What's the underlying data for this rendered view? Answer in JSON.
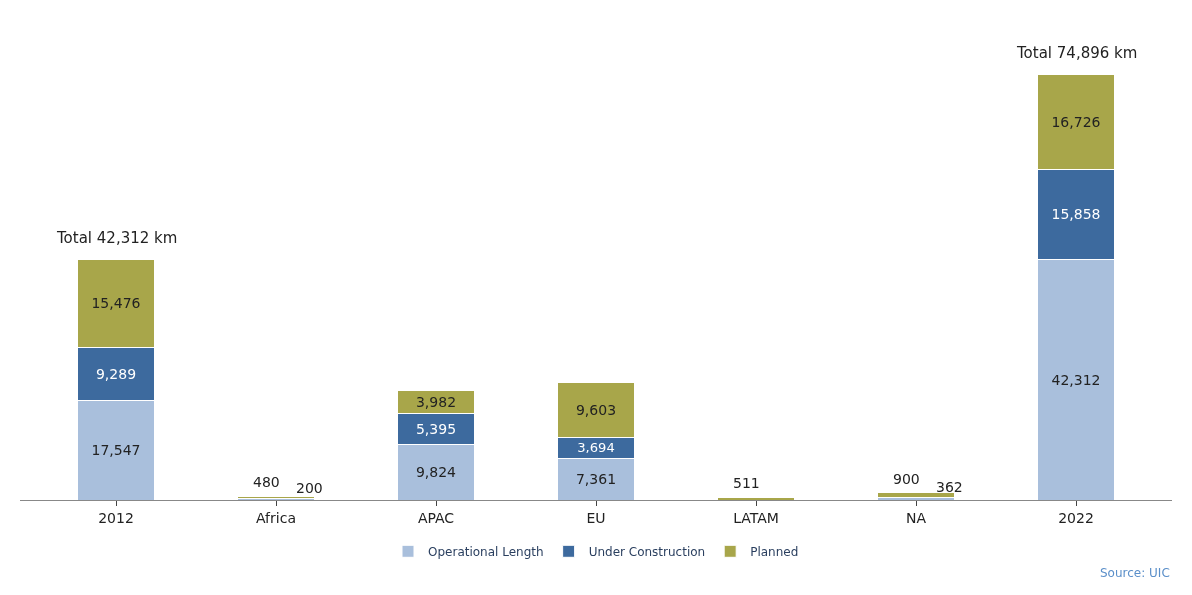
{
  "chart_data": {
    "type": "bar",
    "stacked": true,
    "categories": [
      "2012",
      "Africa",
      "APAC",
      "EU",
      "LATAM",
      "NA",
      "2022"
    ],
    "series": [
      {
        "name": "Operational Length",
        "color": "#a9bfdc",
        "values": [
          17547,
          200,
          9824,
          7361,
          null,
          362,
          42312
        ],
        "value_labels": [
          "17,547",
          "200",
          "9,824",
          "7,361",
          null,
          "362",
          "42,312"
        ]
      },
      {
        "name": "Under Construction",
        "color": "#3d6a9e",
        "values": [
          9289,
          null,
          5395,
          3694,
          null,
          null,
          15858
        ],
        "value_labels": [
          "9,289",
          null,
          "5,395",
          "3,694",
          null,
          null,
          "15,858"
        ]
      },
      {
        "name": "Planned",
        "color": "#a8a64a",
        "values": [
          15476,
          480,
          3982,
          9603,
          511,
          900,
          16726
        ],
        "value_labels": [
          "15,476",
          "480",
          "3,982",
          "9,603",
          "511",
          "900",
          "16,726"
        ]
      }
    ],
    "totals": [
      "Total 42,312 km",
      null,
      null,
      null,
      null,
      null,
      "Total 74,896 km"
    ],
    "legend": "bottom",
    "annotations": [
      "Source: UIC"
    ]
  }
}
